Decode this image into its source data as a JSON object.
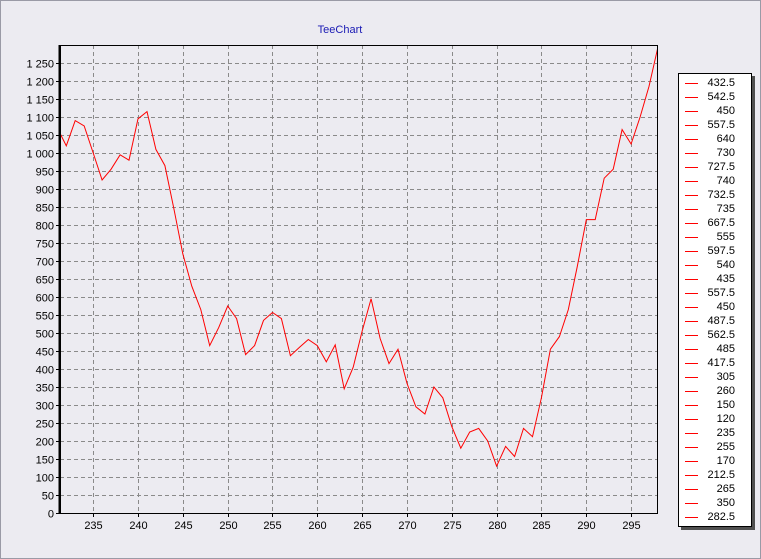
{
  "chart_data": {
    "type": "line",
    "title": "TeeChart",
    "xlabel": "",
    "ylabel": "",
    "xlim": [
      231.3,
      298
    ],
    "ylim": [
      0,
      1300
    ],
    "x_ticks": [
      235,
      240,
      245,
      250,
      255,
      260,
      265,
      270,
      275,
      280,
      285,
      290,
      295
    ],
    "y_ticks": [
      0,
      50,
      100,
      150,
      200,
      250,
      300,
      350,
      400,
      450,
      500,
      550,
      600,
      650,
      700,
      750,
      800,
      850,
      900,
      950,
      1000,
      1050,
      1100,
      1150,
      1200,
      1250
    ],
    "y_tick_labels": [
      "0",
      "50",
      "100",
      "150",
      "200",
      "250",
      "300",
      "350",
      "400",
      "450",
      "500",
      "550",
      "600",
      "650",
      "700",
      "750",
      "800",
      "850",
      "900",
      "950",
      "1 000",
      "1 050",
      "1 100",
      "1 150",
      "1 200",
      "1 250"
    ],
    "grid": true,
    "legend_position": "right",
    "series": [
      {
        "color": "#ff0000",
        "x": [
          231,
          232,
          233,
          234,
          235,
          236,
          237,
          238,
          239,
          240,
          241,
          242,
          243,
          244,
          245,
          246,
          247,
          248,
          249,
          250,
          251,
          252,
          253,
          254,
          255,
          256,
          257,
          258,
          259,
          260,
          261,
          262,
          263,
          264,
          265,
          266,
          267,
          268,
          269,
          270,
          271,
          272,
          273,
          274,
          275,
          276,
          277,
          278,
          279,
          280,
          281,
          282,
          283,
          284,
          285,
          286,
          287,
          288,
          289,
          290,
          291,
          292,
          293,
          294,
          295,
          296,
          297,
          298
        ],
        "y": [
          1070,
          1020,
          1090,
          1075,
          1000,
          925,
          955,
          995,
          980,
          1095,
          1115,
          1010,
          965,
          845,
          720,
          630,
          565,
          465,
          515,
          575,
          540,
          440,
          465,
          535,
          557,
          540,
          437,
          460,
          482,
          465,
          420,
          467,
          345,
          405,
          505,
          595,
          485,
          415,
          455,
          360,
          295,
          275,
          350,
          320,
          240,
          180,
          225,
          235,
          200,
          130,
          185,
          157,
          235,
          212,
          320,
          455,
          490,
          565,
          685,
          815,
          815,
          930,
          955,
          1065,
          1025,
          1100,
          1185,
          1295
        ]
      }
    ],
    "legend_entries": [
      "432.5",
      "542.5",
      "450",
      "557.5",
      "640",
      "730",
      "727.5",
      "740",
      "732.5",
      "735",
      "667.5",
      "555",
      "597.5",
      "540",
      "435",
      "557.5",
      "450",
      "487.5",
      "562.5",
      "485",
      "417.5",
      "305",
      "260",
      "150",
      "120",
      "235",
      "255",
      "170",
      "212.5",
      "265",
      "350",
      "282.5"
    ]
  }
}
